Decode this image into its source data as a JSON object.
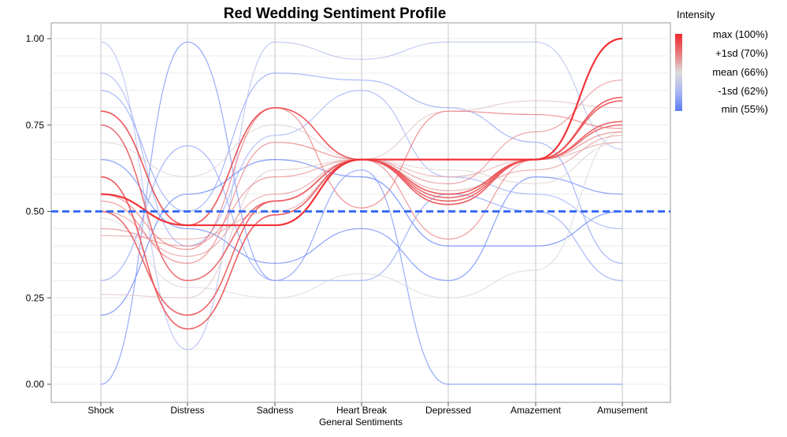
{
  "chart_data": {
    "type": "line",
    "title": "Red Wedding Sentiment Profile",
    "xlabel": "General Sentiments",
    "ylabel": "",
    "ylim": [
      0,
      1
    ],
    "yticks": [
      "0.00",
      "0.25",
      "0.50",
      "0.75",
      "1.00"
    ],
    "ytick_values": [
      0,
      0.25,
      0.5,
      0.75,
      1.0
    ],
    "categories": [
      "Shock",
      "Distress",
      "Sadness",
      "Heart Break",
      "Depressed",
      "Amazement",
      "Amusement"
    ],
    "reference_line": {
      "y": 0.5,
      "style": "dashed",
      "color": "#3b6cf5"
    },
    "grid": true,
    "legend": {
      "title": "Intensity",
      "position": "right",
      "stops": [
        {
          "label": "max (100%)",
          "color": "#f0282d"
        },
        {
          "label": "+1sd (70%)",
          "color": "#e8777a"
        },
        {
          "label": "mean (66%)",
          "color": "#dcdcdc"
        },
        {
          "label": "-1sd (62%)",
          "color": "#a9b6f3"
        },
        {
          "label": "min (55%)",
          "color": "#5a7cf7"
        }
      ]
    },
    "series": [
      {
        "intensity": 1.0,
        "values": [
          0.55,
          0.46,
          0.46,
          0.65,
          0.65,
          0.65,
          1.0
        ]
      },
      {
        "intensity": 0.92,
        "values": [
          0.79,
          0.46,
          0.8,
          0.65,
          0.55,
          0.65,
          0.83
        ]
      },
      {
        "intensity": 0.9,
        "values": [
          0.6,
          0.16,
          0.49,
          0.65,
          0.52,
          0.65,
          0.82
        ]
      },
      {
        "intensity": 0.88,
        "values": [
          0.5,
          0.2,
          0.53,
          0.65,
          0.53,
          0.65,
          0.76
        ]
      },
      {
        "intensity": 0.86,
        "values": [
          0.75,
          0.3,
          0.53,
          0.65,
          0.54,
          0.65,
          0.75
        ]
      },
      {
        "intensity": 0.84,
        "values": [
          0.55,
          0.39,
          0.8,
          0.51,
          0.79,
          0.78,
          0.74
        ]
      },
      {
        "intensity": 0.82,
        "values": [
          0.53,
          0.35,
          0.7,
          0.65,
          0.42,
          0.65,
          0.73
        ]
      },
      {
        "intensity": 0.8,
        "values": [
          0.45,
          0.4,
          0.6,
          0.65,
          0.58,
          0.73,
          0.88
        ]
      },
      {
        "intensity": 0.78,
        "values": [
          0.5,
          0.37,
          0.55,
          0.65,
          0.56,
          0.62,
          0.72
        ]
      },
      {
        "intensity": 0.76,
        "values": [
          0.43,
          0.42,
          0.5,
          0.65,
          0.6,
          0.65,
          0.7
        ]
      },
      {
        "intensity": 0.72,
        "values": [
          0.26,
          0.25,
          0.62,
          0.65,
          0.79,
          0.82,
          0.8
        ]
      },
      {
        "intensity": 0.7,
        "values": [
          0.7,
          0.6,
          0.75,
          0.65,
          0.62,
          0.58,
          0.7
        ]
      },
      {
        "intensity": 0.68,
        "values": [
          0.48,
          0.28,
          0.25,
          0.32,
          0.25,
          0.33,
          0.73
        ]
      },
      {
        "intensity": 0.64,
        "values": [
          0.99,
          0.1,
          0.99,
          0.94,
          0.99,
          0.99,
          0.68
        ]
      },
      {
        "intensity": 0.62,
        "values": [
          0.9,
          0.4,
          0.72,
          0.85,
          0.6,
          0.55,
          0.45
        ]
      },
      {
        "intensity": 0.6,
        "values": [
          0.3,
          0.69,
          0.3,
          0.3,
          0.55,
          0.5,
          0.3
        ]
      },
      {
        "intensity": 0.6,
        "values": [
          0.85,
          0.5,
          0.9,
          0.88,
          0.8,
          0.7,
          0.35
        ]
      },
      {
        "intensity": 0.58,
        "values": [
          0.0,
          0.99,
          0.3,
          0.62,
          0.0,
          0.0,
          0.0
        ]
      },
      {
        "intensity": 0.56,
        "values": [
          0.65,
          0.45,
          0.35,
          0.45,
          0.3,
          0.6,
          0.55
        ]
      },
      {
        "intensity": 0.55,
        "values": [
          0.2,
          0.55,
          0.65,
          0.6,
          0.4,
          0.4,
          0.5
        ]
      }
    ]
  }
}
